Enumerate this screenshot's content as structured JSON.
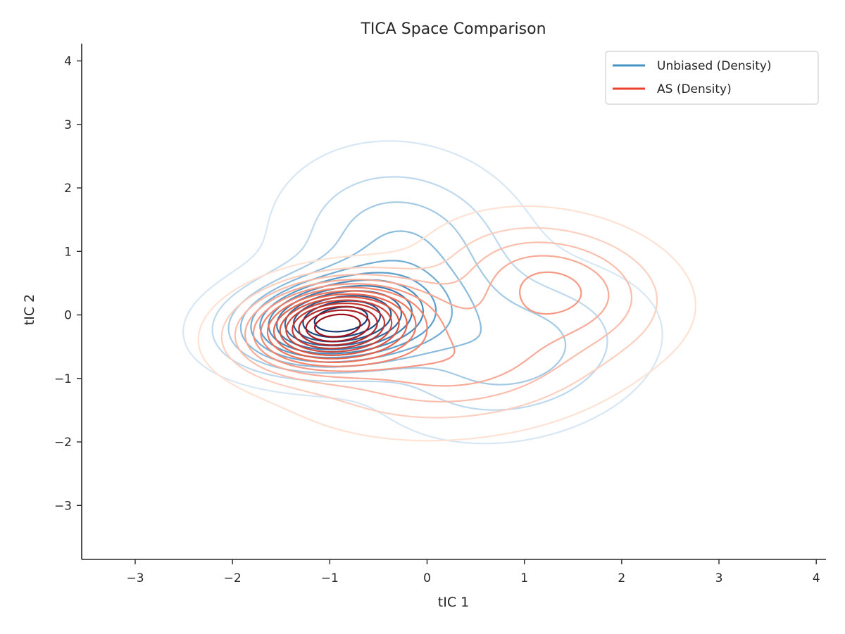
{
  "chart_data": {
    "type": "contour",
    "title": "TICA Space Comparison",
    "xlabel": "tIC 1",
    "ylabel": "tIC 2",
    "xlim": [
      -3.55,
      4.1
    ],
    "ylim": [
      -3.85,
      4.25
    ],
    "xticks": [
      -3,
      -2,
      -1,
      0,
      1,
      2,
      3,
      4
    ],
    "yticks": [
      -3,
      -2,
      -1,
      0,
      1,
      2,
      3,
      4
    ],
    "xtick_labels": [
      "−3",
      "−2",
      "−1",
      "0",
      "1",
      "2",
      "3",
      "4"
    ],
    "ytick_labels": [
      "−3",
      "−2",
      "−1",
      "0",
      "1",
      "2",
      "3",
      "4"
    ],
    "grid": false,
    "legend_position": "top-right",
    "series": [
      {
        "name": "Unbiased (Density)",
        "legend_color": "#4393c3",
        "colormap": "Blues",
        "levels": 12,
        "components": [
          {
            "mu": [
              -0.95,
              -0.1
            ],
            "sigma": [
              0.62,
              0.45
            ],
            "rho": 0.15,
            "weight": 0.45
          },
          {
            "mu": [
              -0.25,
              1.05
            ],
            "sigma": [
              0.7,
              0.85
            ],
            "rho": -0.1,
            "weight": 0.3
          },
          {
            "mu": [
              0.9,
              -0.6
            ],
            "sigma": [
              0.8,
              0.75
            ],
            "rho": 0.2,
            "weight": 0.25
          }
        ]
      },
      {
        "name": "AS (Density)",
        "legend_color": "#e8412c",
        "colormap": "Reds",
        "levels": 14,
        "components": [
          {
            "mu": [
              -0.95,
              -0.15
            ],
            "sigma": [
              0.55,
              0.42
            ],
            "rho": 0.2,
            "weight": 0.42
          },
          {
            "mu": [
              0.3,
              -0.75
            ],
            "sigma": [
              0.95,
              0.62
            ],
            "rho": 0.15,
            "weight": 0.33
          },
          {
            "mu": [
              1.3,
              0.5
            ],
            "sigma": [
              0.7,
              0.6
            ],
            "rho": -0.2,
            "weight": 0.25
          }
        ]
      }
    ]
  }
}
